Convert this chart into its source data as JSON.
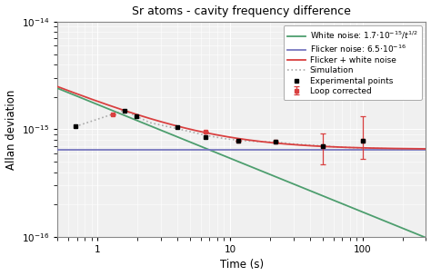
{
  "title": "Sr atoms - cavity frequency difference",
  "xlabel": "Time (s)",
  "ylabel": "Allan deviation",
  "xlim": [
    0.5,
    300
  ],
  "ylim": [
    1e-16,
    1e-14
  ],
  "white_noise_coeff": 1.7e-15,
  "flicker_noise_level": 6.5e-16,
  "green_color": "#4d9e6e",
  "blue_color": "#7878c0",
  "red_color": "#d94040",
  "sim_color": "#aaaaaa",
  "exp_points_x": [
    0.68,
    1.6,
    1.95,
    4.0,
    6.5,
    11.5,
    22.0,
    50.0,
    100.0
  ],
  "exp_points_y": [
    1.06e-15,
    1.5e-15,
    1.32e-15,
    1.05e-15,
    8.5e-16,
    7.9e-16,
    7.6e-16,
    6.9e-16,
    7.8e-16
  ],
  "loop_corr_x": [
    1.3,
    6.5,
    11.5,
    22.0,
    50.0,
    100.0
  ],
  "loop_corr_y": [
    1.38e-15,
    9.5e-16,
    7.9e-16,
    7.6e-16,
    6.9e-16,
    7.8e-16
  ],
  "loop_corr_yerr_lo": [
    0,
    0,
    0,
    0,
    2.2e-16,
    2.5e-16
  ],
  "loop_corr_yerr_hi": [
    0,
    0,
    0,
    0,
    2.2e-16,
    5.5e-16
  ],
  "sim_x": [
    0.68,
    1.3,
    1.6,
    1.95,
    2.5,
    3.5,
    5.0,
    6.5,
    9.0,
    11.5,
    16.0,
    22.0,
    30.0,
    50.0,
    70.0,
    100.0,
    150.0,
    200.0
  ],
  "sim_y": [
    1.06e-15,
    1.38e-15,
    1.5e-15,
    1.32e-15,
    1.15e-15,
    1.05e-15,
    9.5e-16,
    8.8e-16,
    8.2e-16,
    7.9e-16,
    7.7e-16,
    7.6e-16,
    7.3e-16,
    7e-16,
    6.8e-16,
    6.7e-16,
    6.6e-16,
    6.5e-16
  ],
  "legend_labels": [
    "White noise: $1.7{\\cdot}10^{-15}/t^{1/2}$",
    "Flicker noise: $6.5{\\cdot}10^{-16}$",
    "Flicker + white noise",
    "Experimental points",
    "Loop corrected",
    "Simulation"
  ],
  "bg_color": "#f0f0f0"
}
